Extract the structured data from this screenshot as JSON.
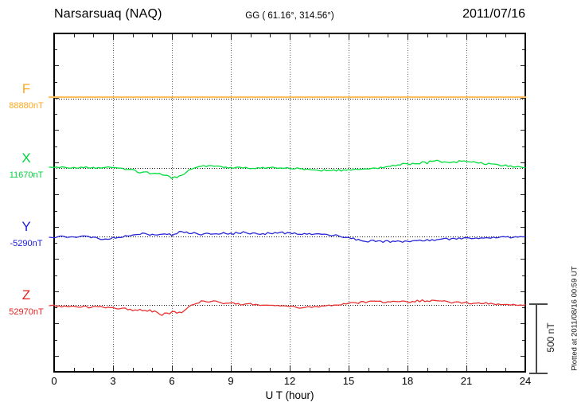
{
  "header": {
    "station": "Narsarsuaq (NAQ)",
    "coords": "GG ( 61.16°, 314.56°)",
    "date": "2011/07/16"
  },
  "footer": {
    "plotted_note": "Plotted at 2011/08/16 00:59 UT"
  },
  "scalebar": {
    "label": "500 nT",
    "nT": 500
  },
  "xaxis": {
    "title": "U T (hour)",
    "ticks": [
      0,
      3,
      6,
      9,
      12,
      15,
      18,
      21,
      24
    ],
    "minor_step_hours": 1,
    "range": [
      0,
      24
    ]
  },
  "colors": {
    "frame": "#000000",
    "grid": "#606060",
    "baseline": "#1a1a1a",
    "scalebar": "#4a4a4a"
  },
  "channels": [
    {
      "id": "F",
      "label": "F",
      "value_label": "88880nT",
      "base_nT": 88880,
      "color": "#FFA81E",
      "line_color": "#FFC061"
    },
    {
      "id": "X",
      "label": "X",
      "value_label": "11670nT",
      "base_nT": 11670,
      "color": "#00D43C",
      "line_color": "#00DE3C"
    },
    {
      "id": "Y",
      "label": "Y",
      "value_label": "-5290nT",
      "base_nT": -5290,
      "color": "#1A1AE0",
      "line_color": "#2828D8"
    },
    {
      "id": "Z",
      "label": "Z",
      "value_label": "52970nT",
      "base_nT": 52970,
      "color": "#E62020",
      "line_color": "#E83030"
    }
  ],
  "chart_data": {
    "type": "line",
    "title": "Narsarsuaq (NAQ) magnetogram 2011/07/16",
    "xlabel": "U T (hour)",
    "x_range_hours": [
      0,
      24
    ],
    "x_major_tick_hours": 3,
    "sample_step_hours": 0.5,
    "scale_bar_nT": 500,
    "grid": "vertical dotted every 3 hours; dotted horizontal baseline per channel",
    "legend_position": "left margin (channel labels F/X/Y/Z with baseline values)",
    "series": [
      {
        "name": "F",
        "baseline_nT": 88880,
        "offsets_nT": [
          12,
          12,
          12,
          12,
          12,
          12,
          12,
          12,
          12,
          12,
          12,
          12,
          12,
          12,
          12,
          12,
          12,
          12,
          12,
          12,
          12,
          12,
          12,
          12,
          12,
          12,
          12,
          12,
          12,
          12,
          12,
          12,
          12,
          12,
          12,
          12,
          12,
          12,
          12,
          12,
          12,
          12,
          12,
          12,
          12,
          12,
          12,
          12,
          12
        ]
      },
      {
        "name": "X",
        "baseline_nT": 11670,
        "offsets_nT": [
          6,
          6,
          0,
          6,
          0,
          6,
          6,
          -6,
          -18,
          -36,
          -42,
          -54,
          -78,
          -48,
          -12,
          12,
          18,
          6,
          0,
          6,
          0,
          0,
          6,
          0,
          0,
          -6,
          -12,
          -18,
          -18,
          -18,
          -18,
          -12,
          -6,
          0,
          12,
          24,
          30,
          36,
          42,
          54,
          48,
          48,
          48,
          42,
          30,
          24,
          18,
          12,
          6
        ]
      },
      {
        "name": "Y",
        "baseline_nT": -5290,
        "offsets_nT": [
          -6,
          0,
          -6,
          0,
          -6,
          -24,
          -12,
          0,
          12,
          24,
          12,
          24,
          12,
          36,
          24,
          18,
          18,
          24,
          18,
          30,
          24,
          18,
          24,
          30,
          24,
          24,
          18,
          18,
          12,
          6,
          -12,
          -24,
          -36,
          -36,
          -42,
          -36,
          -36,
          -30,
          -30,
          -24,
          -18,
          -18,
          -12,
          -12,
          -12,
          -6,
          -6,
          -6,
          0
        ]
      },
      {
        "name": "Z",
        "baseline_nT": 52970,
        "offsets_nT": [
          -6,
          -12,
          -12,
          -12,
          -18,
          -18,
          -18,
          -30,
          -36,
          -42,
          -48,
          -72,
          -54,
          -60,
          0,
          24,
          30,
          18,
          12,
          6,
          6,
          0,
          0,
          -6,
          -12,
          -18,
          -18,
          -12,
          -6,
          0,
          12,
          18,
          24,
          24,
          24,
          30,
          24,
          30,
          36,
          24,
          24,
          18,
          18,
          12,
          12,
          6,
          6,
          0,
          0
        ]
      }
    ]
  }
}
